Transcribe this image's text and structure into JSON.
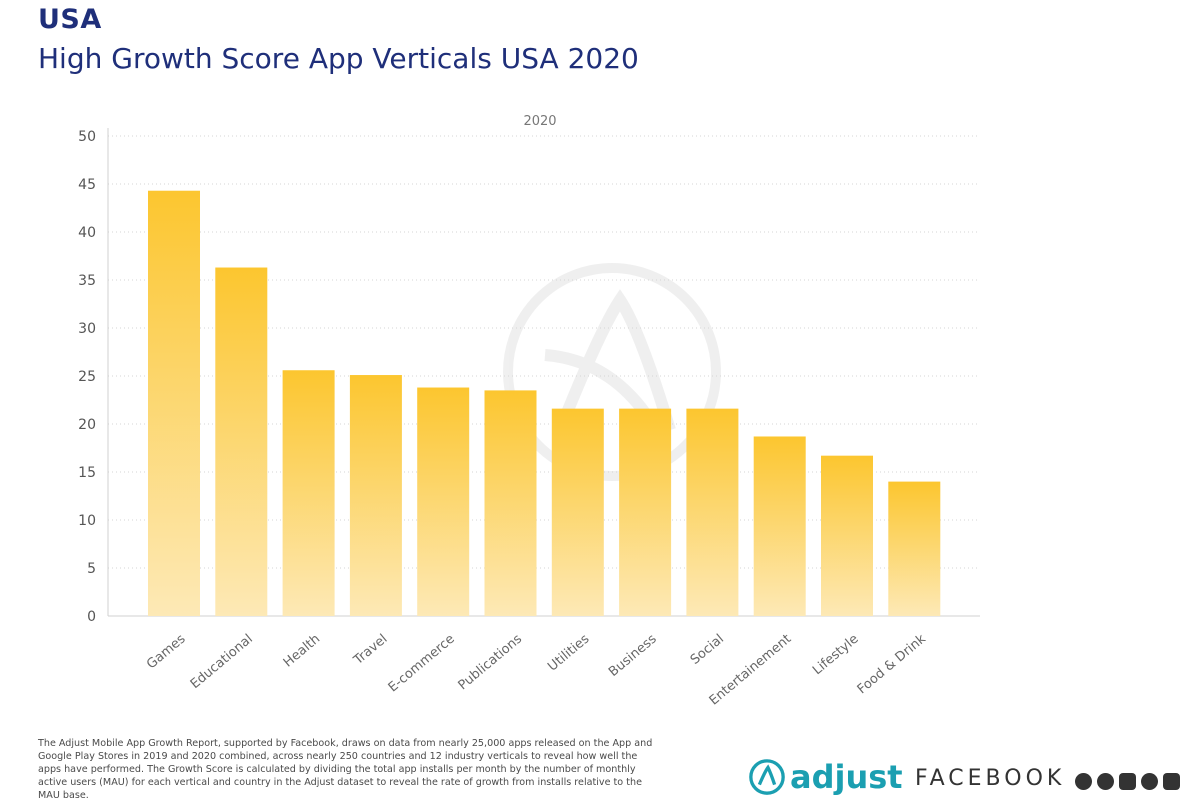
{
  "header": {
    "country": "USA",
    "title": "High Growth Score App Verticals USA 2020"
  },
  "chart_data": {
    "type": "bar",
    "series_label": "2020",
    "categories": [
      "Games",
      "Educational",
      "Health",
      "Travel",
      "E-commerce",
      "Publications",
      "Utilities",
      "Business",
      "Social",
      "Entertainement",
      "Lifestyle",
      "Food & Drink"
    ],
    "values": [
      44.3,
      36.3,
      25.6,
      25.1,
      23.8,
      23.5,
      21.6,
      21.6,
      21.6,
      18.7,
      16.7,
      14.0
    ],
    "ylim": [
      0,
      50
    ],
    "yticks": [
      "0",
      "5",
      "10",
      "15",
      "20",
      "25",
      "30",
      "35",
      "40",
      "45",
      "50"
    ],
    "grid": true,
    "bar_color_top": "#fcc62f",
    "bar_color_bottom": "#fde9b6"
  },
  "footer": {
    "note": "The Adjust Mobile App Growth Report, supported by Facebook, draws on data from nearly 25,000 apps released on the App and Google Play Stores in 2019 and 2020 combined, across nearly 250 countries and 12 industry verticals to reveal how well the apps have performed. The Growth Score is calculated by dividing the total app installs per month by the number of monthly active users (MAU) for each vertical and country in the Adjust dataset to reveal the rate of growth from installs relative to the MAU base.",
    "adjust_brand": "adjust",
    "facebook_brand": "FACEBOOK"
  },
  "colors": {
    "title": "#1f2f7a",
    "adjust": "#1b9fb1"
  }
}
